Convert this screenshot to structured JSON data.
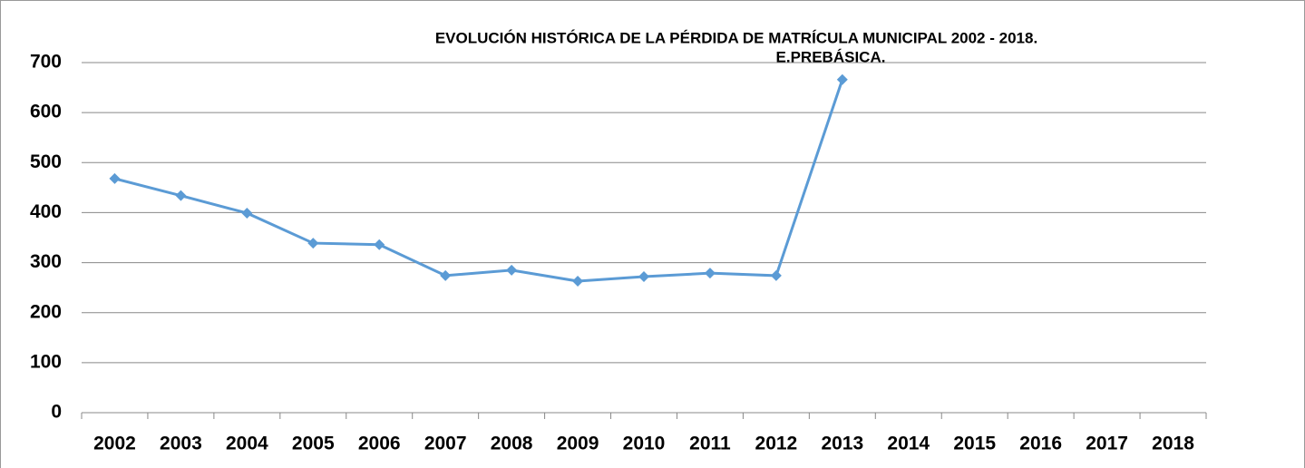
{
  "chart_data": {
    "type": "line",
    "title": "EVOLUCIÓN HISTÓRICA  DE LA PÉRDIDA DE MATRÍCULA MUNICIPAL 2002 - 2018.",
    "subtitle": "E.PREBÁSICA.",
    "categories": [
      "2002",
      "2003",
      "2004",
      "2005",
      "2006",
      "2007",
      "2008",
      "2009",
      "2010",
      "2011",
      "2012",
      "2013",
      "2014",
      "2015",
      "2016",
      "2017",
      "2018"
    ],
    "values": [
      468,
      434,
      399,
      339,
      336,
      274,
      285,
      263,
      272,
      279,
      274,
      666,
      null,
      null,
      null,
      null,
      null
    ],
    "color": "#5b9bd5",
    "ylim": [
      0,
      700
    ],
    "yticks": [
      0,
      100,
      200,
      300,
      400,
      500,
      600,
      700
    ],
    "grid": true
  }
}
